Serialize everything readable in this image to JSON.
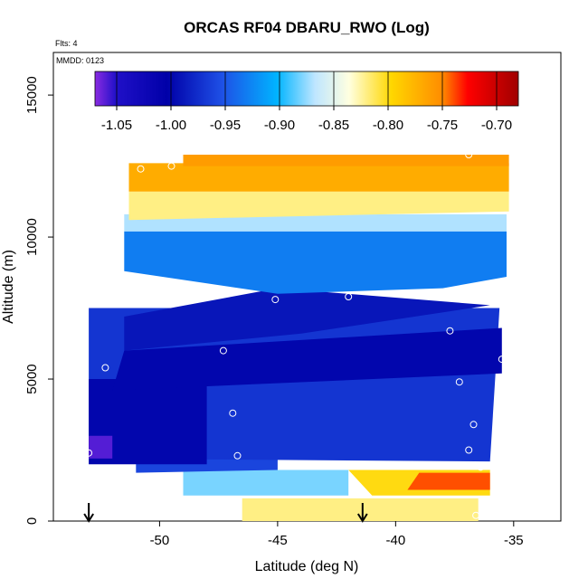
{
  "chart_data": {
    "type": "heatmap",
    "title": "ORCAS RF04 DBARU_RWO (Log)",
    "flts_label": "Flts: 4",
    "mmdd_label": "MMDD: 0123",
    "xlabel": "Latitude (deg N)",
    "ylabel": "Altitude (m)",
    "xlim": [
      -54.5,
      -33
    ],
    "ylim": [
      0,
      16500
    ],
    "x_ticks": [
      -50,
      -45,
      -40,
      -35
    ],
    "y_ticks": [
      0,
      5000,
      10000,
      15000
    ],
    "colorbar": {
      "range": [
        -1.07,
        -0.68
      ],
      "ticks": [
        -1.05,
        -1.0,
        -0.95,
        -0.9,
        -0.85,
        -0.8,
        -0.75,
        -0.7
      ],
      "tick_labels": [
        "-1.05",
        "-1.00",
        "-0.95",
        "-0.90",
        "-0.85",
        "-0.80",
        "-0.75",
        "-0.70"
      ]
    },
    "bands": [
      {
        "value": -0.82,
        "left": [
          [
            -46.5,
            0
          ],
          [
            -36.5,
            0
          ]
        ],
        "right": [
          [
            -36.5,
            800
          ],
          [
            -46.5,
            800
          ]
        ]
      },
      {
        "value": -0.8,
        "left": [
          [
            -41,
            900
          ],
          [
            -36,
            900
          ]
        ],
        "right": [
          [
            -36,
            1800
          ],
          [
            -42,
            1800
          ]
        ]
      },
      {
        "value": -0.74,
        "left": [
          [
            -39.5,
            1100
          ],
          [
            -36,
            1100
          ]
        ],
        "right": [
          [
            -36,
            1700
          ],
          [
            -39,
            1700
          ]
        ]
      },
      {
        "value": -0.88,
        "left": [
          [
            -49,
            900
          ],
          [
            -42,
            900
          ]
        ],
        "right": [
          [
            -42,
            1800
          ],
          [
            -49,
            1800
          ]
        ]
      },
      {
        "value": -0.96,
        "left": [
          [
            -51,
            1700
          ],
          [
            -45,
            1800
          ]
        ],
        "right": [
          [
            -45,
            2300
          ],
          [
            -51,
            2300
          ]
        ]
      },
      {
        "value": -0.97,
        "left": [
          [
            -53,
            2200
          ],
          [
            -36,
            2100
          ]
        ],
        "right": [
          [
            -35.6,
            7500
          ],
          [
            -53,
            7500
          ]
        ]
      },
      {
        "value": -1.0,
        "left": [
          [
            -53,
            2000
          ],
          [
            -48,
            2000
          ]
        ],
        "right": [
          [
            -48,
            5000
          ],
          [
            -53,
            5000
          ]
        ]
      },
      {
        "value": -1.0,
        "left": [
          [
            -52,
            4600
          ],
          [
            -35.5,
            5200
          ]
        ],
        "right": [
          [
            -35.5,
            6800
          ],
          [
            -51.5,
            6000
          ]
        ]
      },
      {
        "value": -0.99,
        "left": [
          [
            -51.5,
            6000
          ],
          [
            -44,
            6600
          ]
        ],
        "right": [
          [
            -36,
            7600
          ],
          [
            -45,
            8200
          ],
          [
            -51.5,
            7200
          ]
        ]
      },
      {
        "value": -1.06,
        "left": [
          [
            -53,
            2200
          ],
          [
            -52,
            2200
          ]
        ],
        "right": [
          [
            -52,
            3000
          ],
          [
            -53,
            3000
          ]
        ]
      },
      {
        "value": -0.93,
        "left": [
          [
            -51.5,
            8800
          ],
          [
            -45,
            8000
          ]
        ],
        "right": [
          [
            -38,
            8200
          ],
          [
            -35.3,
            8600
          ],
          [
            -35.3,
            10200
          ],
          [
            -51.5,
            10200
          ]
        ]
      },
      {
        "value": -0.87,
        "left": [
          [
            -51.5,
            10200
          ],
          [
            -35.3,
            10200
          ]
        ],
        "right": [
          [
            -35.3,
            10800
          ],
          [
            -51.5,
            10800
          ]
        ]
      },
      {
        "value": -0.82,
        "left": [
          [
            -51.3,
            10600
          ],
          [
            -35.2,
            10900
          ]
        ],
        "right": [
          [
            -35.2,
            11600
          ],
          [
            -51.3,
            11600
          ]
        ]
      },
      {
        "value": -0.77,
        "left": [
          [
            -51.3,
            11600
          ],
          [
            -35.2,
            11600
          ]
        ],
        "right": [
          [
            -35.2,
            12600
          ],
          [
            -51.3,
            12600
          ]
        ]
      },
      {
        "value": -0.76,
        "left": [
          [
            -49,
            12500
          ],
          [
            -35.2,
            12500
          ]
        ],
        "right": [
          [
            -35.2,
            12900
          ],
          [
            -49,
            12900
          ]
        ]
      }
    ],
    "flight_points": [
      [
        -53,
        2400
      ],
      [
        -52.3,
        5400
      ],
      [
        -50.8,
        12400
      ],
      [
        -49.5,
        12500
      ],
      [
        -47.3,
        6000
      ],
      [
        -46.9,
        3800
      ],
      [
        -46.7,
        2300
      ],
      [
        -45.1,
        7800
      ],
      [
        -42,
        7900
      ],
      [
        -38,
        7900
      ],
      [
        -37.7,
        6700
      ],
      [
        -37.3,
        4900
      ],
      [
        -36.9,
        2500
      ],
      [
        -36.7,
        3400
      ],
      [
        -36.4,
        1900
      ],
      [
        -36.6,
        200
      ],
      [
        -36.9,
        12900
      ],
      [
        -35.5,
        5700
      ],
      [
        -35.2,
        7800
      ],
      [
        -34.9,
        12900
      ]
    ],
    "arrows_lat": [
      -53,
      -41.4
    ]
  }
}
